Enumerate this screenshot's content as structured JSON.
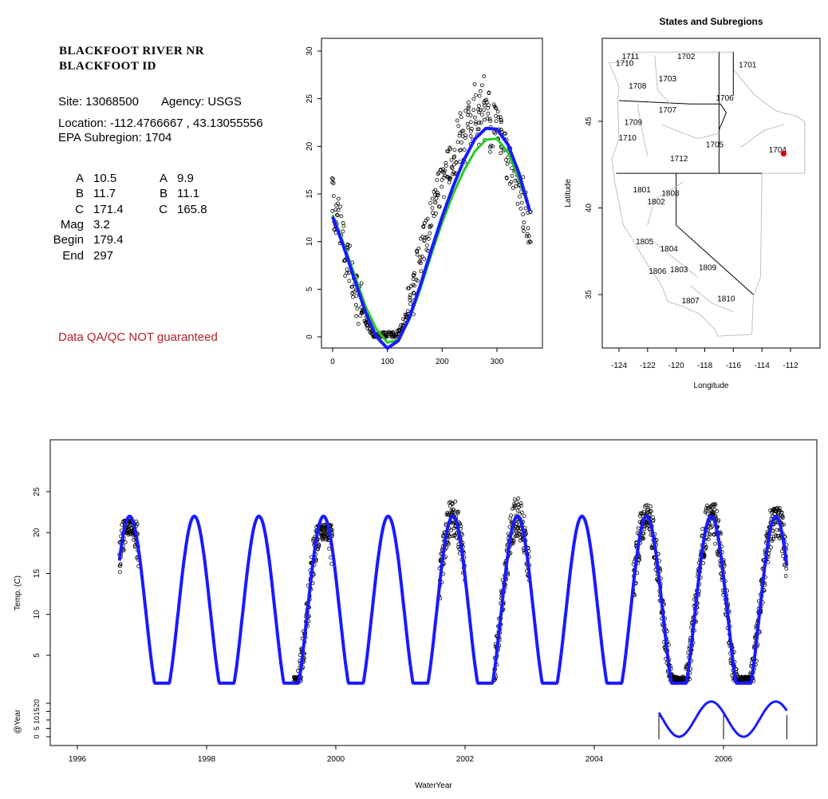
{
  "header": {
    "station_line1": "BLACKFOOT RIVER NR",
    "station_line2": "BLACKFOOT ID",
    "site_label": "Site: 13068500",
    "agency_label": "Agency: USGS",
    "location_label": "Location: -112.4766667 , 43.13055556",
    "subregion_label": "EPA Subregion: 1704",
    "qa_note": "Data QA/QC NOT guaranteed"
  },
  "coefficients": {
    "left": [
      {
        "name": "A",
        "value": "10.5"
      },
      {
        "name": "B",
        "value": "11.7"
      },
      {
        "name": "C",
        "value": "171.4"
      },
      {
        "name": "Mag",
        "value": "3.2"
      },
      {
        "name": "Begin",
        "value": "179.4"
      },
      {
        "name": "End",
        "value": "297"
      }
    ],
    "right": [
      {
        "name": "A",
        "value": "9.9"
      },
      {
        "name": "B",
        "value": "11.1"
      },
      {
        "name": "C",
        "value": "165.8"
      }
    ]
  },
  "colors": {
    "fit_blue": "#1a1aff",
    "fit_green": "#22cc22",
    "map_boundary": "#c0c0c0",
    "site_marker": "#dd0000",
    "qa_red": "#b22222"
  },
  "chart_data": [
    {
      "type": "scatter",
      "title": "",
      "xlabel": "",
      "ylabel": "",
      "xlim": [
        0,
        365
      ],
      "ylim": [
        -1,
        31
      ],
      "x_ticks": [
        "0",
        "100",
        "200",
        "300"
      ],
      "y_ticks": [
        "0",
        "5",
        "10",
        "15",
        "20",
        "25",
        "30"
      ],
      "series": [
        {
          "label": "observed",
          "marker": "open-circle",
          "color": "#000000",
          "x": [
            2,
            5,
            8,
            12,
            16,
            20,
            25,
            30,
            35,
            40,
            45,
            50,
            55,
            60,
            65,
            70,
            75,
            80,
            85,
            90,
            95,
            100,
            105,
            110,
            115,
            120,
            125,
            130,
            135,
            140,
            145,
            150,
            155,
            160,
            165,
            170,
            175,
            180,
            185,
            190,
            195,
            200,
            205,
            210,
            215,
            220,
            225,
            230,
            235,
            240,
            245,
            250,
            255,
            260,
            265,
            270,
            275,
            280,
            285,
            290,
            295,
            300,
            305,
            310,
            315,
            320,
            325,
            330,
            335,
            340,
            345,
            350,
            355,
            360
          ],
          "y": [
            14.5,
            13.2,
            11.8,
            12.3,
            10.5,
            9.8,
            8.6,
            7.9,
            6.8,
            5.6,
            4.2,
            3.5,
            2.6,
            1.8,
            1.2,
            0.8,
            0.2,
            0.1,
            0.1,
            0.2,
            0.1,
            0.1,
            0.2,
            0.1,
            0.3,
            0.6,
            0.9,
            1.5,
            2.4,
            3.2,
            4.6,
            5.4,
            7.1,
            8.2,
            9.6,
            10.8,
            11.2,
            12.4,
            13.8,
            14.5,
            15.8,
            16.4,
            17.2,
            18.4,
            17.8,
            19.2,
            18.6,
            20.5,
            21.4,
            19.8,
            22.4,
            23.6,
            21.8,
            24.5,
            22.2,
            23.8,
            25.4,
            22.8,
            24.1,
            21.6,
            23.5,
            22.7,
            21.4,
            20.8,
            20.2,
            18.9,
            18.1,
            17.4,
            16.2,
            15.8,
            14.6,
            13.1,
            12.4,
            11.2
          ]
        },
        {
          "label": "fit-blue",
          "line": true,
          "color": "#1a1aff",
          "x": [
            0,
            20,
            40,
            60,
            80,
            100,
            120,
            140,
            160,
            180,
            200,
            220,
            240,
            260,
            280,
            300,
            320,
            340,
            360
          ],
          "y": [
            12.6,
            9.5,
            6.0,
            2.6,
            0.0,
            -1.2,
            -0.4,
            2.0,
            5.4,
            9.1,
            12.6,
            15.8,
            18.6,
            20.8,
            21.9,
            21.8,
            20.2,
            17.2,
            13.2
          ]
        },
        {
          "label": "fit-green",
          "line": true,
          "color": "#22cc22",
          "x": [
            0,
            20,
            40,
            60,
            80,
            100,
            120,
            140,
            160,
            180,
            200,
            220,
            240,
            260,
            280,
            300,
            320,
            340,
            360
          ],
          "y": [
            12.8,
            9.8,
            6.5,
            3.2,
            0.8,
            -0.6,
            -0.3,
            1.8,
            5.0,
            8.6,
            12.0,
            15.0,
            17.5,
            19.5,
            20.7,
            20.8,
            19.4,
            16.6,
            13.2
          ]
        }
      ]
    },
    {
      "type": "line",
      "title": "States and Subregions",
      "xlabel": "Longitude",
      "ylabel": "Latitude",
      "xlim": [
        -125.5,
        -111
      ],
      "ylim": [
        32,
        50
      ],
      "x_ticks": [
        "-124",
        "-122",
        "-120",
        "-118",
        "-116",
        "-114",
        "-112"
      ],
      "y_ticks": [
        "35",
        "40",
        "45"
      ],
      "labels": [
        {
          "text": "1711",
          "lon": -123.2,
          "lat": 48.6
        },
        {
          "text": "1710",
          "lon": -123.6,
          "lat": 48.2
        },
        {
          "text": "1702",
          "lon": -119.3,
          "lat": 48.6
        },
        {
          "text": "1701",
          "lon": -115.0,
          "lat": 48.1
        },
        {
          "text": "1703",
          "lon": -120.6,
          "lat": 47.3
        },
        {
          "text": "1708",
          "lon": -122.7,
          "lat": 46.9
        },
        {
          "text": "1706",
          "lon": -116.6,
          "lat": 46.2
        },
        {
          "text": "1707",
          "lon": -120.6,
          "lat": 45.5
        },
        {
          "text": "1709",
          "lon": -123.0,
          "lat": 44.8
        },
        {
          "text": "1710",
          "lon": -123.4,
          "lat": 43.9
        },
        {
          "text": "1705",
          "lon": -117.3,
          "lat": 43.5
        },
        {
          "text": "1704",
          "lon": -112.9,
          "lat": 43.2
        },
        {
          "text": "1712",
          "lon": -119.8,
          "lat": 42.7
        },
        {
          "text": "1801",
          "lon": -122.4,
          "lat": 40.9
        },
        {
          "text": "1808",
          "lon": -120.4,
          "lat": 40.7
        },
        {
          "text": "1802",
          "lon": -121.4,
          "lat": 40.2
        },
        {
          "text": "1805",
          "lon": -122.2,
          "lat": 37.9
        },
        {
          "text": "1804",
          "lon": -120.5,
          "lat": 37.5
        },
        {
          "text": "1806",
          "lon": -121.3,
          "lat": 36.2
        },
        {
          "text": "1803",
          "lon": -119.8,
          "lat": 36.3
        },
        {
          "text": "1809",
          "lon": -117.8,
          "lat": 36.4
        },
        {
          "text": "1807",
          "lon": -119.0,
          "lat": 34.5
        },
        {
          "text": "1810",
          "lon": -116.5,
          "lat": 34.6
        }
      ],
      "site": {
        "lon": -112.48,
        "lat": 43.13
      }
    },
    {
      "type": "line",
      "title": "",
      "xlabel": "WaterYear",
      "ylabel": "Temp. (C)",
      "ylabel2": "@Year",
      "xlim": [
        1995.7,
        2007.8
      ],
      "ylim": [
        -3,
        29.8
      ],
      "x_ticks": [
        "1996",
        "1998",
        "2000",
        "2002",
        "2004",
        "2006"
      ],
      "y_ticks": [
        "5",
        "10",
        "15",
        "20",
        "25"
      ],
      "y2_ticks": [
        "0",
        "5",
        "10",
        "15",
        "20"
      ],
      "fit": {
        "mean": 10.3,
        "amplitude": 11.7,
        "peak_year_fraction": 0.81,
        "start": 1996.65,
        "end": 2006.98
      },
      "observed_periods": [
        {
          "start": 1996.65,
          "end": 1996.95,
          "peak": 21.5
        },
        {
          "start": 1999.35,
          "end": 1999.95,
          "peak": 21.0
        },
        {
          "start": 2001.6,
          "end": 2002.0,
          "peak": 24.0
        },
        {
          "start": 2002.45,
          "end": 2003.0,
          "peak": 24.5
        },
        {
          "start": 2004.6,
          "end": 2005.45,
          "peak": 23.5
        },
        {
          "start": 2005.45,
          "end": 2006.45,
          "peak": 23.5
        },
        {
          "start": 2006.45,
          "end": 2006.98,
          "peak": 23.0
        }
      ],
      "year_curve": {
        "start": 2005.0,
        "end": 2006.98,
        "ticks": [
          2005.0,
          2006.0,
          2006.98
        ]
      }
    }
  ]
}
